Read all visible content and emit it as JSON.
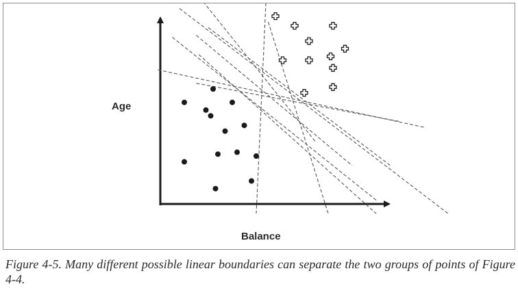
{
  "caption": "Figure 4-5. Many different possible linear boundaries can separate the two groups of points of Figure 4-4.",
  "chart_data": {
    "type": "scatter",
    "xlabel": "Balance",
    "ylabel": "Age",
    "xlim": [
      0,
      100
    ],
    "ylim": [
      0,
      100
    ],
    "grid": false,
    "series": [
      {
        "marker": "dot",
        "color": "#1a1a1a",
        "points": [
          [
            10,
            53
          ],
          [
            22,
            60
          ],
          [
            19,
            49
          ],
          [
            21,
            46
          ],
          [
            30,
            53
          ],
          [
            27,
            38
          ],
          [
            35,
            41
          ],
          [
            10,
            22
          ],
          [
            24,
            26
          ],
          [
            32,
            27
          ],
          [
            40,
            25
          ],
          [
            38,
            12
          ],
          [
            23,
            8
          ]
        ]
      },
      {
        "marker": "plus",
        "color": "#1a1a1a",
        "points": [
          [
            48,
            98
          ],
          [
            56,
            93
          ],
          [
            62,
            85
          ],
          [
            51,
            75
          ],
          [
            62,
            75
          ],
          [
            72,
            93
          ],
          [
            77,
            81
          ],
          [
            72,
            71
          ],
          [
            71,
            77
          ],
          [
            72,
            61
          ],
          [
            60,
            58
          ]
        ]
      }
    ],
    "boundaries": [
      [
        [
          15,
          110
        ],
        [
          65,
          32
        ]
      ],
      [
        [
          8,
          102
        ],
        [
          120,
          -5
        ]
      ],
      [
        [
          20,
          92
        ],
        [
          96,
          20
        ]
      ],
      [
        [
          15,
          88
        ],
        [
          80,
          20
        ]
      ],
      [
        [
          16,
          78
        ],
        [
          90,
          -5
        ]
      ],
      [
        [
          -1,
          70
        ],
        [
          110,
          40
        ]
      ],
      [
        [
          15,
          63
        ],
        [
          100,
          43
        ]
      ],
      [
        [
          5,
          87
        ],
        [
          90,
          2
        ]
      ],
      [
        [
          44,
          105
        ],
        [
          40,
          -5
        ]
      ],
      [
        [
          45,
          95
        ],
        [
          70,
          -5
        ]
      ]
    ]
  }
}
